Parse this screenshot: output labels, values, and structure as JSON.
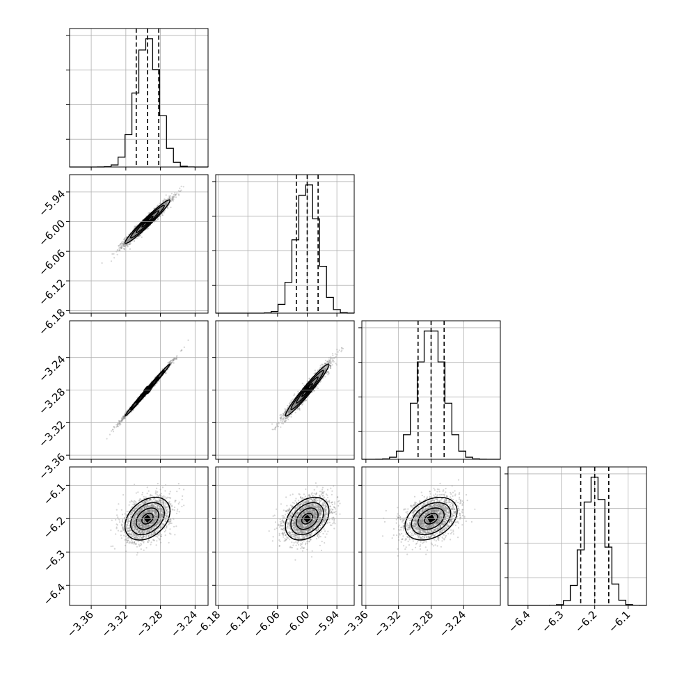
{
  "chart_data": {
    "type": "corner",
    "grid": true,
    "colors": {
      "points": "#888888",
      "line": "#000000",
      "gridline": "#b0b0b0"
    },
    "params": [
      {
        "range": [
          -3.385,
          -3.225
        ],
        "ticks": [
          -3.36,
          -3.32,
          -3.28,
          -3.24
        ],
        "tick_labels": [
          "−3.36",
          "−3.32",
          "−3.28",
          "−3.24"
        ],
        "center": -3.295,
        "std": 0.013,
        "quantiles": [
          -3.308,
          -3.295,
          -3.282
        ]
      },
      {
        "range": [
          -6.185,
          -5.905
        ],
        "ticks": [
          -6.18,
          -6.12,
          -6.06,
          -6.0,
          -5.94
        ],
        "tick_labels": [
          "−6.18",
          "−6.12",
          "−6.06",
          "−6.00",
          "−5.94"
        ],
        "center": -6.0,
        "std": 0.022,
        "quantiles": [
          -6.022,
          -6.0,
          -5.978
        ]
      },
      {
        "range": [
          -3.365,
          -3.195
        ],
        "ticks": [
          -3.36,
          -3.32,
          -3.28,
          -3.24
        ],
        "tick_labels": [
          "−3.36",
          "−3.32",
          "−3.28",
          "−3.24"
        ],
        "center": -3.28,
        "std": 0.016,
        "quantiles": [
          -3.296,
          -3.28,
          -3.264
        ]
      },
      {
        "range": [
          -6.46,
          -6.045
        ],
        "ticks": [
          -6.4,
          -6.3,
          -6.2,
          -6.1
        ],
        "tick_labels": [
          "−6.4",
          "−6.3",
          "−6.2",
          "−6.1"
        ],
        "center": -6.2,
        "std": 0.032,
        "quantiles": [
          -6.242,
          -6.2,
          -6.158
        ]
      }
    ],
    "correlations": [
      {
        "i": 1,
        "j": 0,
        "rho": 0.97
      },
      {
        "i": 2,
        "j": 0,
        "rho": 0.995
      },
      {
        "i": 2,
        "j": 1,
        "rho": 0.97
      },
      {
        "i": 3,
        "j": 0,
        "rho": 0.35
      },
      {
        "i": 3,
        "j": 1,
        "rho": 0.35
      },
      {
        "i": 3,
        "j": 2,
        "rho": 0.35
      }
    ],
    "hist_bins": 20,
    "contour_levels_sigma": [
      0.5,
      1.0,
      1.5,
      2.0
    ]
  }
}
